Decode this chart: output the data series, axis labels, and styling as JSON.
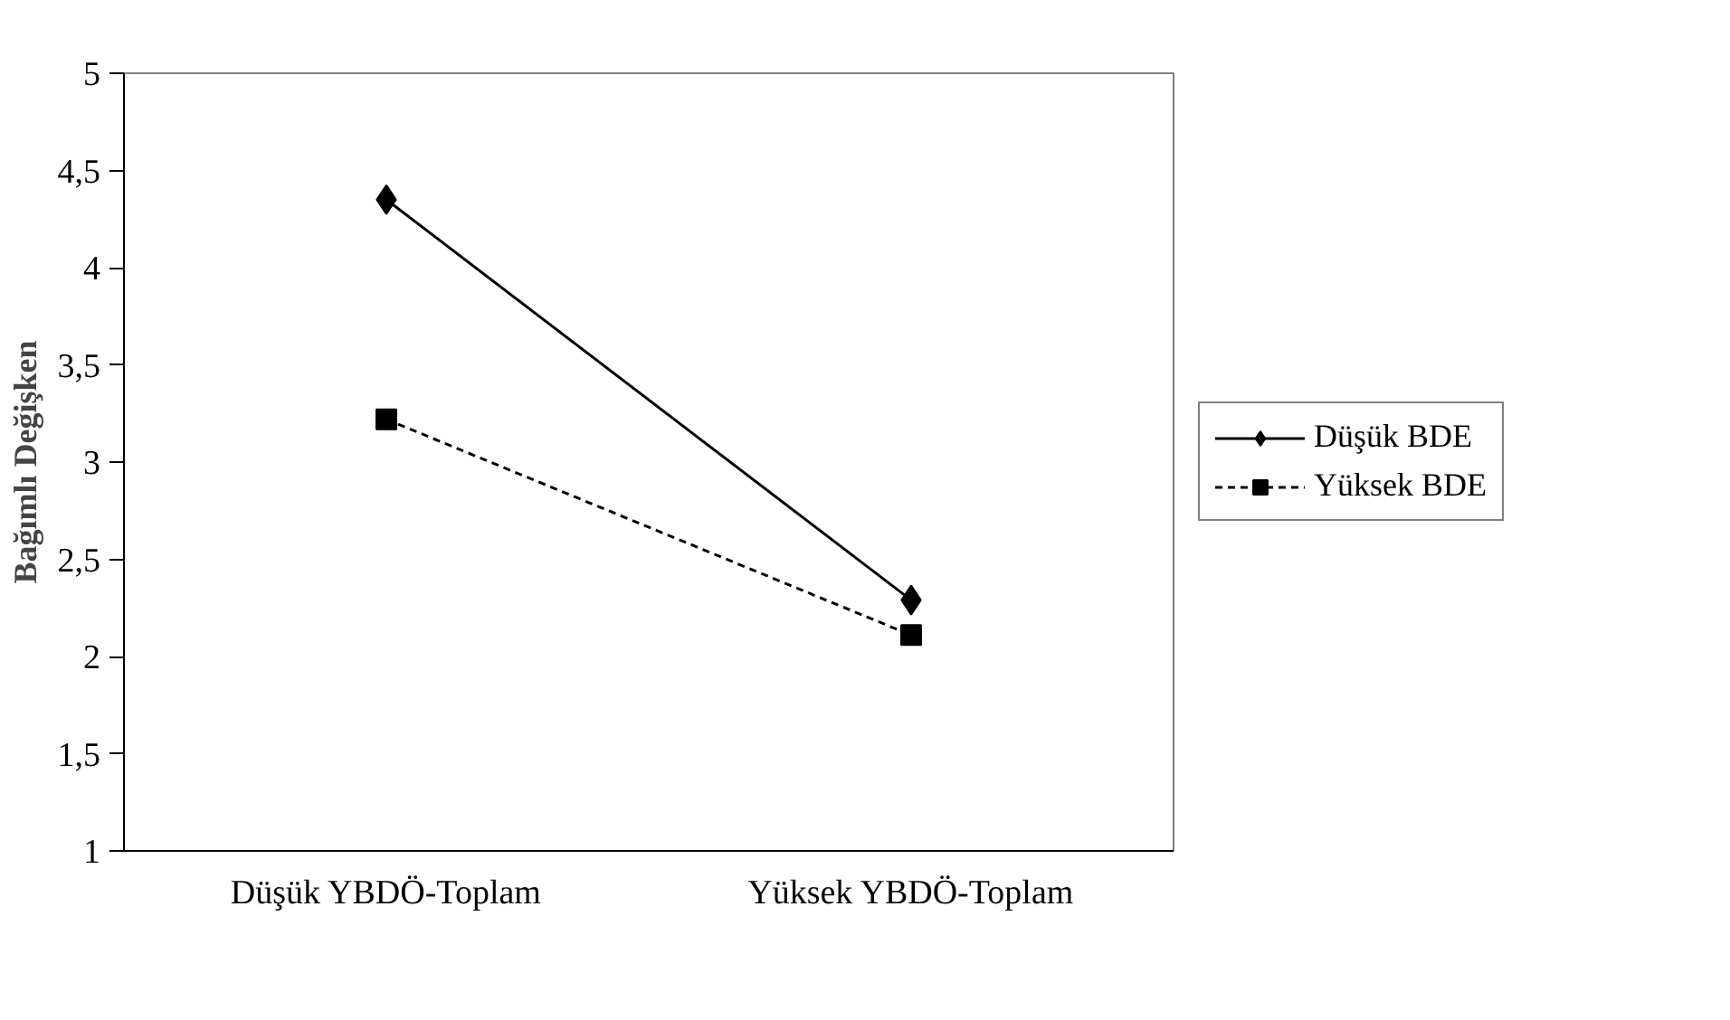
{
  "chart_data": {
    "type": "line",
    "ylabel": "Bağımlı Değişken",
    "categories": [
      "Düşük YBDÖ-Toplam",
      "Yüksek YBDÖ-Toplam"
    ],
    "series": [
      {
        "name": "Düşük BDE",
        "color": "#000000",
        "values": [
          4.35,
          2.29
        ],
        "marker": "diamond",
        "line_style": "solid"
      },
      {
        "name": "Yüksek BDE",
        "color": "#000000",
        "values": [
          3.22,
          2.11
        ],
        "marker": "square",
        "line_style": "dashed"
      }
    ],
    "ylim": [
      1,
      5
    ],
    "yticks": [
      1,
      {
        "value": 1.5,
        "label": "1,5"
      },
      2,
      {
        "value": 2.5,
        "label": "2,5"
      },
      3,
      {
        "value": 3.5,
        "label": "3,5"
      },
      4,
      {
        "value": 4.5,
        "label": "4,5"
      },
      5
    ],
    "grid": false,
    "legend": "right"
  }
}
